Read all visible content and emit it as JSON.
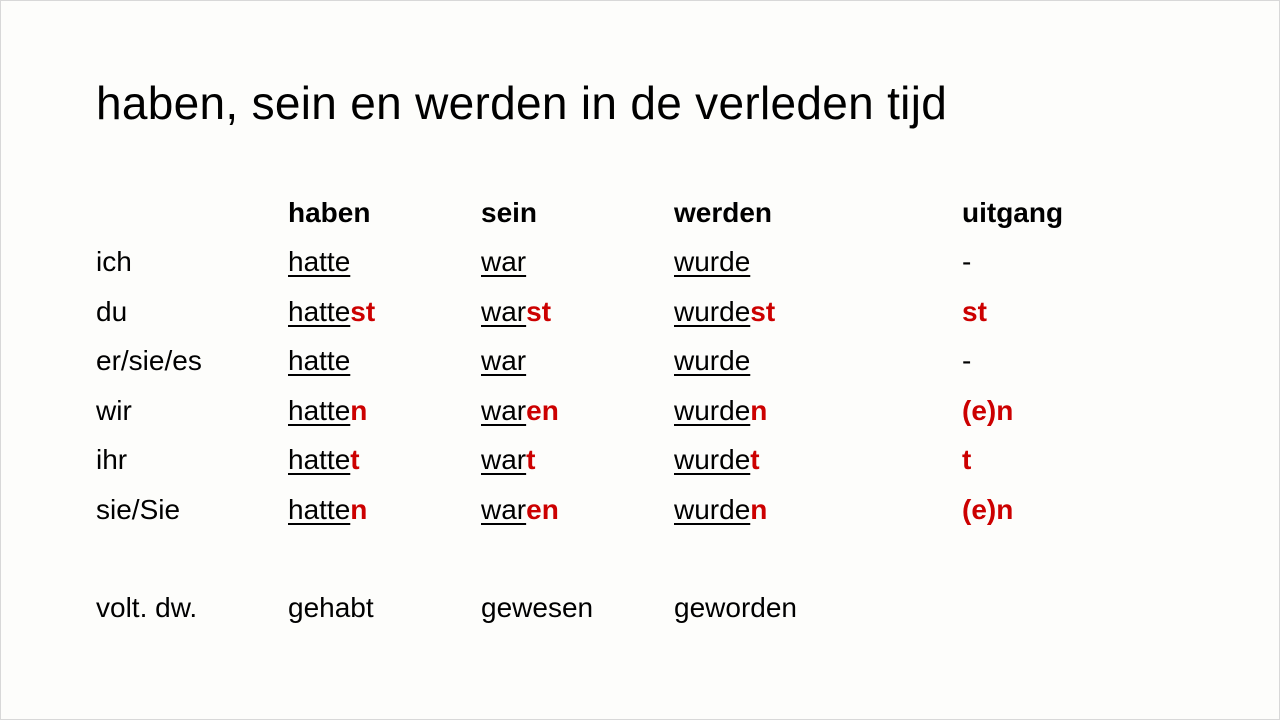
{
  "title": "haben, sein en werden in de verleden tijd",
  "headers": [
    "haben",
    "sein",
    "werden",
    "uitgang"
  ],
  "rows": [
    {
      "pronoun": "ich",
      "forms": [
        {
          "stem": "hatte",
          "ending": ""
        },
        {
          "stem": "war",
          "ending": ""
        },
        {
          "stem": "wurde",
          "ending": ""
        }
      ],
      "uitgang": "-"
    },
    {
      "pronoun": "du",
      "forms": [
        {
          "stem": "hatte",
          "ending": "st"
        },
        {
          "stem": "war",
          "ending": "st"
        },
        {
          "stem": "wurde",
          "ending": "st"
        }
      ],
      "uitgang": "st"
    },
    {
      "pronoun": "er/sie/es",
      "forms": [
        {
          "stem": "hatte",
          "ending": ""
        },
        {
          "stem": "war",
          "ending": ""
        },
        {
          "stem": "wurde",
          "ending": ""
        }
      ],
      "uitgang": "-"
    },
    {
      "pronoun": "wir",
      "forms": [
        {
          "stem": "hatte",
          "ending": "n"
        },
        {
          "stem": "war",
          "ending": "en"
        },
        {
          "stem": "wurde",
          "ending": "n"
        }
      ],
      "uitgang": "(e)n"
    },
    {
      "pronoun": "ihr",
      "forms": [
        {
          "stem": "hatte",
          "ending": "t"
        },
        {
          "stem": "war",
          "ending": "t"
        },
        {
          "stem": "wurde",
          "ending": "t"
        }
      ],
      "uitgang": "t"
    },
    {
      "pronoun": "sie/Sie",
      "forms": [
        {
          "stem": "hatte",
          "ending": "n"
        },
        {
          "stem": "war",
          "ending": "en"
        },
        {
          "stem": "wurde",
          "ending": "n"
        }
      ],
      "uitgang": "(e)n"
    }
  ],
  "participle": {
    "label": "volt. dw.",
    "values": [
      "gehabt",
      "gewesen",
      "geworden"
    ]
  },
  "colors": {
    "ending": "#cc0000",
    "background": "#fdfdfb"
  }
}
